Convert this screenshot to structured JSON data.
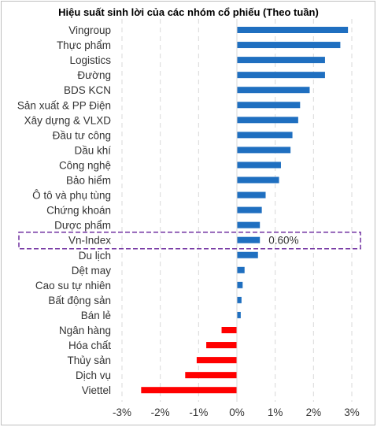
{
  "chart_data": {
    "type": "bar",
    "orientation": "horizontal",
    "title": "Hiệu suất sinh lời của các nhóm cổ phiếu (Theo tuần)",
    "categories": [
      "Vingroup",
      "Thực phẩm",
      "Logistics",
      "Đường",
      "BDS KCN",
      "Sản xuất & PP Điện",
      "Xây dựng & VLXD",
      "Đầu tư công",
      "Dầu khí",
      "Công nghệ",
      "Bảo hiểm",
      "Ô tô và phụ tùng",
      "Chứng khoán",
      "Dược phẩm",
      "Vn-Index",
      "Du lịch",
      "Dệt may",
      "Cao su tự nhiên",
      "Bất động sản",
      "Bán lẻ",
      "Ngân hàng",
      "Hóa chất",
      "Thủy sản",
      "Dịch vụ",
      "Viettel"
    ],
    "values": [
      2.9,
      2.7,
      2.3,
      2.3,
      1.9,
      1.65,
      1.6,
      1.45,
      1.4,
      1.15,
      1.1,
      0.75,
      0.65,
      0.6,
      0.6,
      0.55,
      0.2,
      0.15,
      0.12,
      0.1,
      -0.4,
      -0.8,
      -1.05,
      -1.35,
      -2.5
    ],
    "xlim": [
      -3,
      3
    ],
    "xticks": [
      -3,
      -2,
      -1,
      0,
      1,
      2,
      3
    ],
    "xtick_labels": [
      "-3%",
      "-2%",
      "-1%",
      "0%",
      "1%",
      "2%",
      "3%"
    ],
    "grid": "vertical dashed",
    "legend": "none",
    "highlight": {
      "category": "Vn-Index",
      "label": "0.60%"
    },
    "colors": {
      "positive": "#1f6fc0",
      "negative": "#ff0000",
      "highlight_box": "#7030a0",
      "grid": "#d9d9d9"
    }
  }
}
